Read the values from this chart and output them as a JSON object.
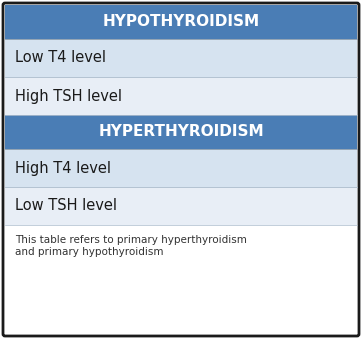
{
  "title1": "HYPOTHYROIDISM",
  "title2": "HYPERTHYROIDISM",
  "rows_hypo": [
    "Low T4 level",
    "High TSH level"
  ],
  "rows_hyper": [
    "High T4 level",
    "Low TSH level"
  ],
  "footnote": "This table refers to primary hyperthyroidism\nand primary hypothyroidism",
  "header_color": "#4a7db5",
  "header_text_color": "#ffffff",
  "row_color_light": "#d6e3f0",
  "row_color_lighter": "#e8eef6",
  "background_color": "#ffffff",
  "border_color": "#1a1a1a",
  "text_color": "#1a1a1a",
  "footnote_color": "#333333",
  "header_fontsize": 11,
  "row_fontsize": 10.5,
  "footnote_fontsize": 7.5
}
